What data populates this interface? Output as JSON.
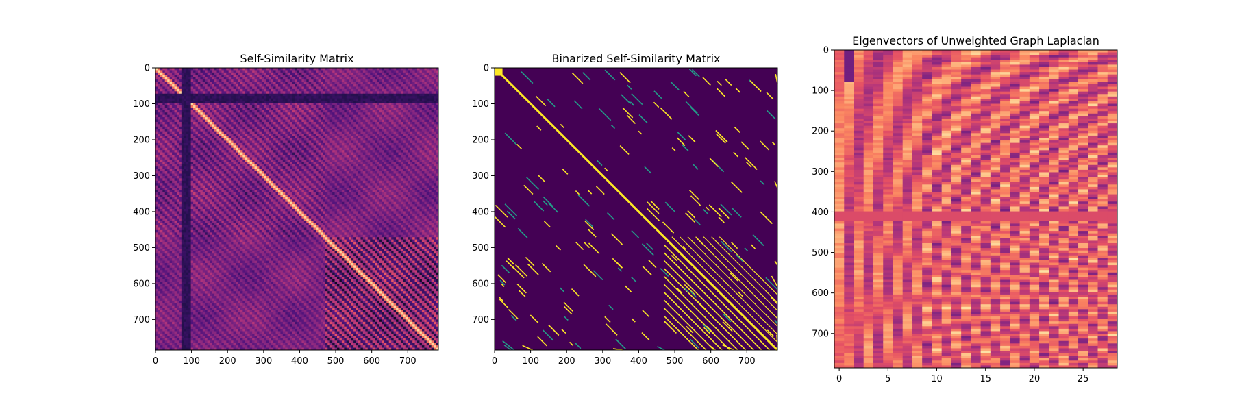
{
  "chart_data": [
    {
      "type": "heatmap",
      "title": "Self-Similarity Matrix",
      "colormap": "magma",
      "xlim": [
        0,
        785
      ],
      "ylim": [
        785,
        0
      ],
      "xticks": [
        0,
        100,
        200,
        300,
        400,
        500,
        600,
        700
      ],
      "yticks": [
        0,
        100,
        200,
        300,
        400,
        500,
        600,
        700
      ],
      "structure": {
        "matrix_size": 785,
        "diagonal": "bright",
        "dark_band_rows_cols": [
          70,
          100
        ],
        "section_boundaries": [
          20,
          100,
          280,
          410,
          470
        ],
        "stripe_period": 22
      }
    },
    {
      "type": "heatmap",
      "title": "Binarized Self-Similarity Matrix",
      "colormap": "viridis",
      "xlim": [
        0,
        785
      ],
      "ylim": [
        785,
        0
      ],
      "xticks": [
        0,
        100,
        200,
        300,
        400,
        500,
        600,
        700
      ],
      "yticks": [
        0,
        100,
        200,
        300,
        400,
        500,
        600,
        700
      ],
      "structure": {
        "matrix_size": 785,
        "values": [
          0,
          1
        ],
        "diagonal": "on",
        "parallel_diagonals_region": [
          470,
          785
        ],
        "parallel_diagonal_spacing": 22
      }
    },
    {
      "type": "heatmap",
      "title": "Eigenvectors of Unweighted Graph Laplacian",
      "colormap": "magma",
      "xlim": [
        -0.5,
        28.5
      ],
      "ylim": [
        785,
        0
      ],
      "xticks": [
        0,
        5,
        10,
        15,
        20,
        25
      ],
      "yticks": [
        0,
        100,
        200,
        300,
        400,
        500,
        600,
        700
      ],
      "structure": {
        "rows": 785,
        "columns": 29
      }
    }
  ]
}
